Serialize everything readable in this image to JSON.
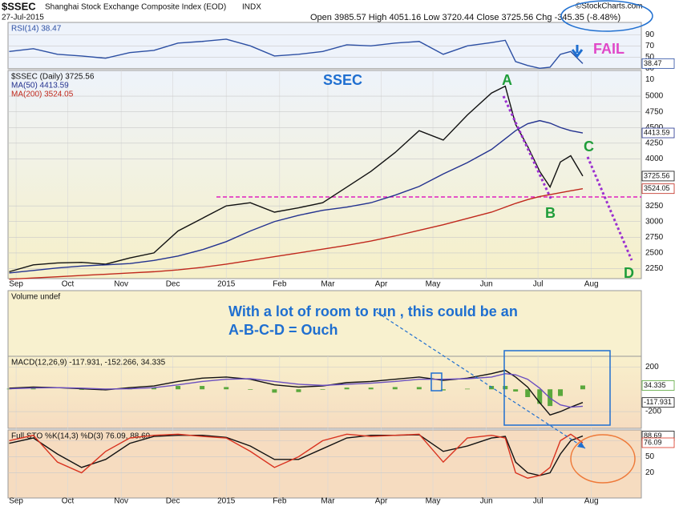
{
  "header": {
    "symbol": "$SSEC",
    "name": "Shanghai Stock Exchange Composite Index (EOD)",
    "exchange": "INDX",
    "date": "27-Jul-2015",
    "quote": "Open 3985.57 High 4051.16 Low 3720.44 Close 3725.56 Chg -345.35 (-8.48%)",
    "credit": "©StockCharts.com"
  },
  "annotations": {
    "fail": "FAIL",
    "ssec": "SSEC",
    "a": "A",
    "b": "B",
    "c": "C",
    "d": "D",
    "note1": "With a lot of room to run ,  this could be an",
    "note2": "A-B-C-D =  Ouch"
  },
  "chart_data": {
    "type": "line",
    "xlim": [
      -4.7,
      363
    ],
    "xticks": [
      {
        "value": 0,
        "label": "Sep"
      },
      {
        "value": 30,
        "label": "Oct"
      },
      {
        "value": 61,
        "label": "Nov"
      },
      {
        "value": 91,
        "label": "Dec"
      },
      {
        "value": 122,
        "label": "2015"
      },
      {
        "value": 153,
        "label": "Feb"
      },
      {
        "value": 181,
        "label": "Mar"
      },
      {
        "value": 212,
        "label": "Apr"
      },
      {
        "value": 242,
        "label": "May"
      },
      {
        "value": 273,
        "label": "Jun"
      },
      {
        "value": 303,
        "label": "Jul"
      },
      {
        "value": 334,
        "label": "Aug"
      }
    ],
    "x": [
      -4,
      10,
      24,
      38,
      52,
      66,
      80,
      94,
      108,
      122,
      136,
      150,
      164,
      178,
      192,
      206,
      220,
      234,
      248,
      262,
      276,
      284,
      290,
      297,
      304,
      310,
      316,
      322,
      329
    ],
    "panels": [
      {
        "ylim": [
          29,
          112
        ],
        "yticks": [
          10,
          30,
          50,
          70,
          90
        ],
        "series": [
          {
            "name": "RSI(14) 38.47",
            "color": "#2c4fa3",
            "badge": true,
            "values": [
              60,
              65,
              55,
              52,
              48,
              58,
              62,
              75,
              78,
              82,
              70,
              52,
              55,
              60,
              72,
              70,
              75,
              78,
              55,
              70,
              76,
              80,
              42,
              35,
              30,
              32,
              55,
              60,
              38.47
            ]
          }
        ]
      },
      {
        "ylim": [
          2090,
          5410
        ],
        "yticks": [
          2250,
          2500,
          2750,
          3000,
          3250,
          4000,
          4250,
          4500,
          4750,
          5000
        ],
        "hline": 3393,
        "series": [
          {
            "name": "$SSEC (Daily) 3725.56",
            "color": "#111111",
            "badge": true,
            "values": [
              2200,
              2310,
              2340,
              2350,
              2320,
              2420,
              2500,
              2850,
              3050,
              3250,
              3300,
              3150,
              3220,
              3300,
              3550,
              3800,
              4100,
              4450,
              4300,
              4700,
              5050,
              5160,
              4550,
              4200,
              3800,
              3550,
              3950,
              4050,
              3725.56
            ]
          },
          {
            "name": "MA(50) 4413.59",
            "color": "#23328f",
            "badge": true,
            "values": [
              2180,
              2220,
              2260,
              2290,
              2310,
              2330,
              2380,
              2450,
              2550,
              2680,
              2850,
              3000,
              3100,
              3180,
              3230,
              3300,
              3420,
              3560,
              3760,
              3940,
              4150,
              4320,
              4450,
              4560,
              4610,
              4570,
              4500,
              4450,
              4413.59
            ]
          },
          {
            "name": "MA(200) 3524.05",
            "color": "#c0281c",
            "badge": true,
            "values": [
              2080,
              2100,
              2120,
              2140,
              2160,
              2180,
              2200,
              2230,
              2270,
              2320,
              2380,
              2440,
              2500,
              2560,
              2620,
              2690,
              2770,
              2860,
              2950,
              3050,
              3150,
              3230,
              3290,
              3350,
              3400,
              3430,
              3460,
              3490,
              3524.05
            ]
          }
        ]
      },
      {
        "title": "Volume undef",
        "series": []
      },
      {
        "title": "MACD(12,26,9) -117.931, -152.266, 34.335",
        "ylim": [
          -350,
          296
        ],
        "yticks": [
          -200,
          200
        ],
        "series": [
          {
            "type": "bar",
            "color": "#5aa83c",
            "badge": true,
            "values": [
              5,
              8,
              0,
              -5,
              -7,
              10,
              15,
              30,
              30,
              20,
              -5,
              -30,
              -25,
              -5,
              15,
              15,
              20,
              20,
              -10,
              5,
              30,
              30,
              -20,
              -70,
              -130,
              -150,
              -60,
              0,
              34.335
            ]
          },
          {
            "color": "#111111",
            "badge": true,
            "values": [
              10,
              20,
              15,
              5,
              -5,
              15,
              30,
              70,
              100,
              110,
              90,
              40,
              20,
              30,
              60,
              70,
              90,
              110,
              80,
              100,
              140,
              170,
              110,
              20,
              -120,
              -230,
              -200,
              -160,
              -117.931
            ]
          },
          {
            "color": "#6b4fc0",
            "values": [
              5,
              12,
              15,
              10,
              2,
              5,
              15,
              40,
              70,
              90,
              95,
              70,
              45,
              35,
              45,
              55,
              70,
              90,
              90,
              95,
              110,
              140,
              130,
              90,
              10,
              -80,
              -140,
              -160,
              -152.266
            ]
          }
        ]
      },
      {
        "title": "Full STO %K(14,3) %D(3) 76.09, 88.69",
        "ylim": [
          -27,
          100
        ],
        "yticks": [
          20,
          50,
          80
        ],
        "series": [
          {
            "color": "#111111",
            "badge": true,
            "values": [
              75,
              85,
              55,
              30,
              45,
              75,
              88,
              90,
              90,
              86,
              70,
              45,
              45,
              65,
              85,
              90,
              90,
              91,
              60,
              70,
              85,
              88,
              40,
              20,
              15,
              20,
              55,
              80,
              88.69
            ]
          },
          {
            "color": "#d9321f",
            "badge": true,
            "values": [
              80,
              90,
              40,
              20,
              60,
              85,
              90,
              92,
              88,
              85,
              60,
              30,
              50,
              80,
              92,
              88,
              90,
              92,
              40,
              85,
              90,
              85,
              20,
              10,
              15,
              30,
              80,
              92,
              76.09
            ]
          }
        ]
      }
    ]
  }
}
